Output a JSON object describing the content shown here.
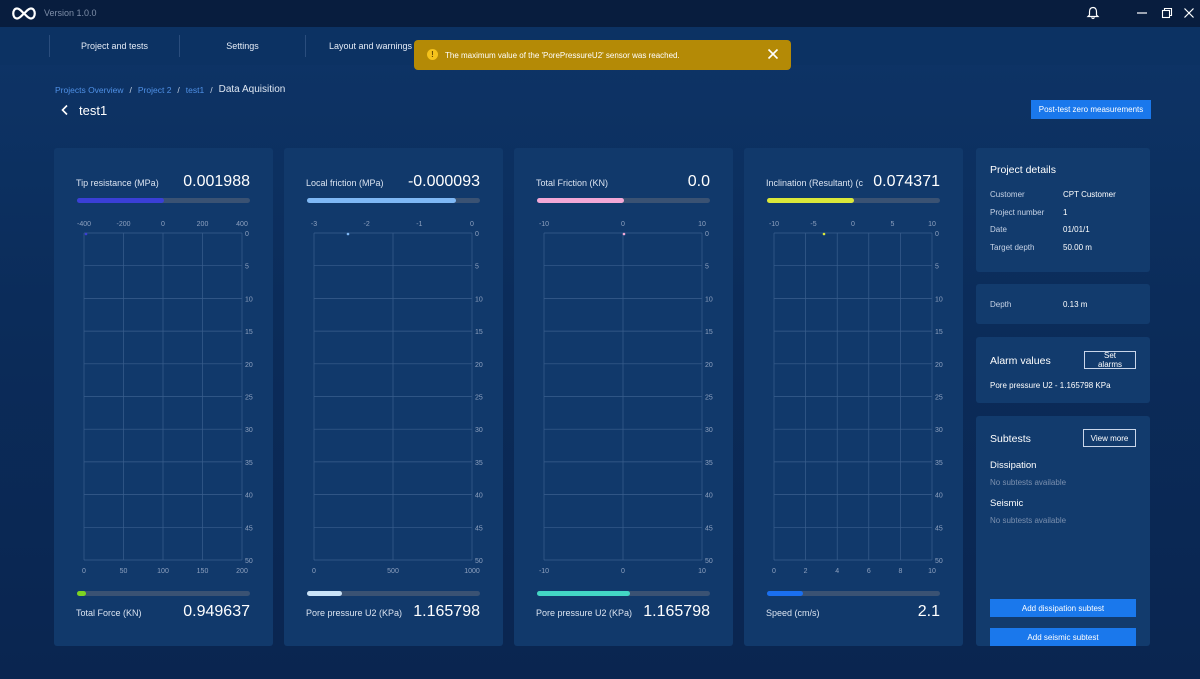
{
  "app": {
    "version": "Version 1.0.0",
    "icons": {
      "logo": "infinity-logo",
      "notification": "bell-icon",
      "minimize": "minimize-icon",
      "restore": "restore-icon",
      "close": "close-icon"
    }
  },
  "nav": {
    "items": [
      {
        "label": "Project and tests"
      },
      {
        "label": "Settings"
      },
      {
        "label": "Layout and warnings"
      }
    ]
  },
  "toast": {
    "message": "The maximum value of the 'PorePressureU2' sensor was reached.",
    "color": "#b48a06"
  },
  "breadcrumb": {
    "items": [
      "Projects Overview",
      "Project 2",
      "test1"
    ],
    "current": "Data Aquisition"
  },
  "page": {
    "title": "test1",
    "post_test_button": "Post-test zero measurements"
  },
  "panels": [
    {
      "top_label": "Tip resistance (MPa)",
      "top_value": "0.001988",
      "top_color": "#3a3fd6",
      "top_fraction": 0.5,
      "x_ticks_top": [
        "-400",
        "-200",
        "0",
        "200",
        "400"
      ],
      "x_ticks_bottom": [
        "0",
        "50",
        "100",
        "150",
        "200"
      ],
      "bottom_label": "Total Force (KN)",
      "bottom_value": "0.949637",
      "bottom_color": "#7ed321",
      "bottom_fraction": 0.05
    },
    {
      "top_label": "Local friction (MPa)",
      "top_value": "-0.000093",
      "top_color": "#7fb8f5",
      "top_fraction": 0.86,
      "x_ticks_top": [
        "-3",
        "-2",
        "-1",
        "0"
      ],
      "x_ticks_bottom": [
        "0",
        "500",
        "1000"
      ],
      "bottom_label": "Pore pressure U2 (KPa)",
      "bottom_value": "1.165798",
      "bottom_color": "#c9e2f7",
      "bottom_fraction": 0.2
    },
    {
      "top_label": "Total Friction (KN)",
      "top_value": "0.0",
      "top_color": "#f2a8d6",
      "top_fraction": 0.5,
      "x_ticks_top": [
        "-10",
        "0",
        "10"
      ],
      "x_ticks_bottom": [
        "-10",
        "0",
        "10"
      ],
      "bottom_label": "Pore pressure U2 (KPa)",
      "bottom_value": "1.165798",
      "bottom_color": "#43d6c4",
      "bottom_fraction": 0.54
    },
    {
      "top_label": "Inclination (Resultant) (c",
      "top_value": "0.074371",
      "top_color": "#dbe83a",
      "top_fraction": 0.5,
      "x_ticks_top": [
        "-10",
        "-5",
        "0",
        "5",
        "10"
      ],
      "x_ticks_bottom": [
        "0",
        "2",
        "4",
        "6",
        "8",
        "10"
      ],
      "bottom_label": "Speed (cm/s)",
      "bottom_value": "2.1",
      "bottom_color": "#1a6ff0",
      "bottom_fraction": 0.21
    }
  ],
  "depth_ticks": [
    "0",
    "5",
    "10",
    "15",
    "20",
    "25",
    "30",
    "35",
    "40",
    "45",
    "50"
  ],
  "project_details": {
    "title": "Project details",
    "rows": [
      {
        "key": "Customer",
        "value": "CPT Customer"
      },
      {
        "key": "Project number",
        "value": "1"
      },
      {
        "key": "Date",
        "value": "01/01/1"
      },
      {
        "key": "Target depth",
        "value": "50.00 m"
      }
    ]
  },
  "depth": {
    "key": "Depth",
    "value": "0.13 m"
  },
  "alarms": {
    "title": "Alarm values",
    "button": "Set alarms",
    "entry": "Pore pressure U2 - 1.165798 KPa"
  },
  "subtests": {
    "title": "Subtests",
    "button": "View more",
    "dissipation_head": "Dissipation",
    "dissipation_empty": "No subtests available",
    "seismic_head": "Seismic",
    "seismic_empty": "No subtests available",
    "add_dissipation": "Add dissipation subtest",
    "add_seismic": "Add seismic subtest"
  }
}
